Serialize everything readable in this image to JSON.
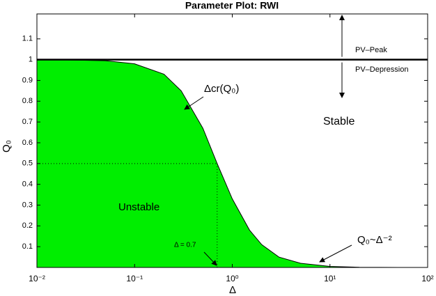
{
  "chart_data": {
    "type": "area",
    "title": "Parameter Plot: RWI",
    "x_label": "Δ",
    "y_label": "Q₀",
    "log_x": true,
    "x": [
      0.01,
      0.02,
      0.05,
      0.1,
      0.2,
      0.3,
      0.5,
      0.7,
      1,
      1.5,
      2,
      3,
      5,
      10,
      20,
      50,
      100
    ],
    "series": [
      {
        "name": "Unstable",
        "color": "#00ee00",
        "values": [
          1.0,
          0.999,
          0.995,
          0.98,
          0.93,
          0.85,
          0.67,
          0.5,
          0.33,
          0.18,
          0.11,
          0.05,
          0.02,
          0.005,
          0.001,
          0,
          0
        ]
      }
    ],
    "xlim": [
      0.01,
      100
    ],
    "xticks": [
      {
        "value": 0.01,
        "label": "10⁻²"
      },
      {
        "value": 0.1,
        "label": "10⁻¹"
      },
      {
        "value": 1,
        "label": "10⁰"
      },
      {
        "value": 10,
        "label": "10¹"
      },
      {
        "value": 100,
        "label": "10²"
      }
    ],
    "ylim": [
      0,
      1.22
    ],
    "yticks": [
      0.1,
      0.2,
      0.3,
      0.4,
      0.5,
      0.6,
      0.7,
      0.8,
      0.9,
      1,
      1.1
    ],
    "reference_line": {
      "y": 1
    },
    "marker": {
      "x": 0.7,
      "y": 0.5
    },
    "annotations": [
      "PV–Peak",
      "PV–Depression",
      "Δcr(Q₀)",
      "Stable",
      "Unstable",
      "Δ = 0.7",
      "Q₀~Δ⁻²"
    ]
  }
}
